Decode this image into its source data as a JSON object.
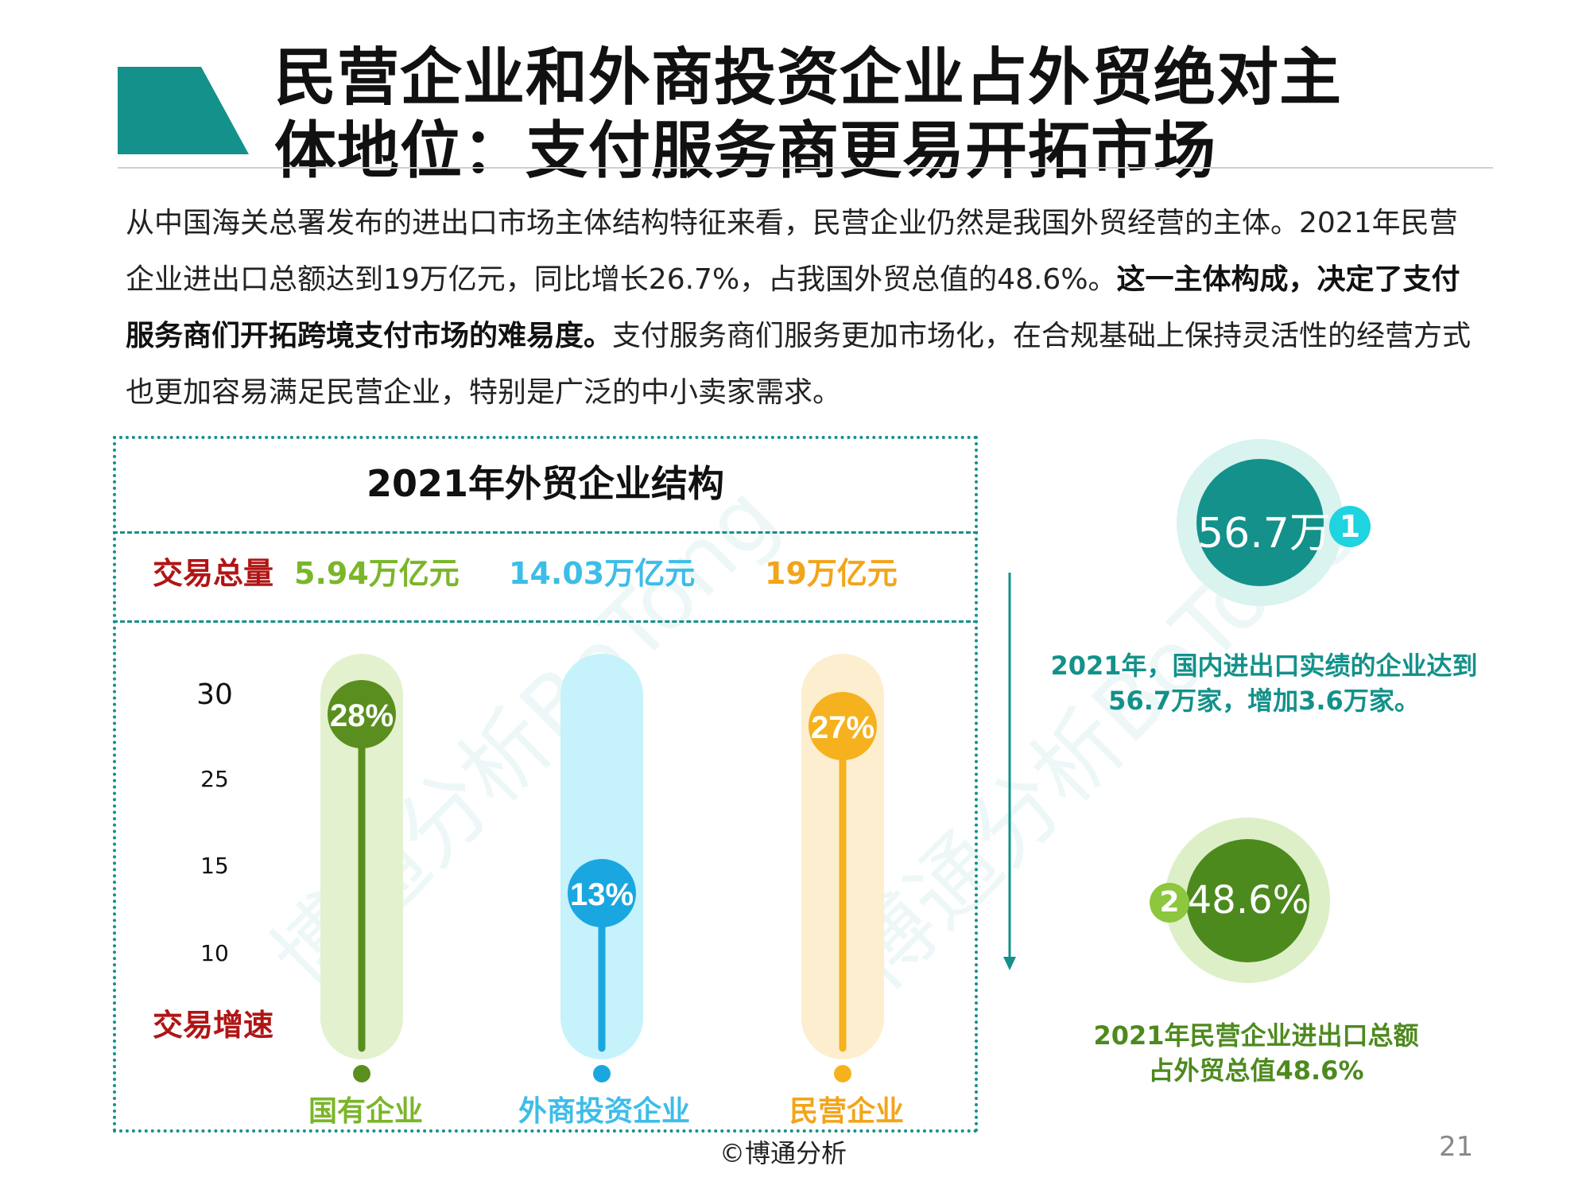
{
  "header": {
    "title_line1": "民营企业和外商投资企业占外贸绝对主",
    "title_line2": "体地位：支付服务商更易开拓市场",
    "accent_color": "#13918a"
  },
  "intro": {
    "part1": "从中国海关总署发布的进出口市场主体结构特征来看，民营企业仍然是我国外贸经营的主体。2021年民营企业进出口总额达到19万亿元，同比增长26.7%，占我国外贸总值的48.6%。",
    "bold": "这一主体构成，决定了支付服务商们开拓跨境支付市场的难易度。",
    "part2": "支付服务商们服务更加市场化，在合规基础上保持灵活性的经营方式也更加容易满足民营企业，特别是广泛的中小卖家需求。"
  },
  "watermark": "博通分析BoTong",
  "chart_data": {
    "type": "bar",
    "title": "2021年外贸企业结构",
    "volume_label": "交易总量",
    "speed_label": "交易增速",
    "categories": [
      "国有企业",
      "外商投资企业",
      "民营企业"
    ],
    "volumes": [
      "5.94万亿元",
      "14.03万亿元",
      "19万亿元"
    ],
    "values": [
      28,
      13,
      27
    ],
    "value_labels": [
      "28%",
      "13%",
      "27%"
    ],
    "yticks": [
      "30",
      "25",
      "15",
      "10"
    ],
    "colors": [
      "#5a8f1f",
      "#1aa7e0",
      "#f5b21e"
    ],
    "track_colors": [
      "#e3f1cf",
      "#c6f2fb",
      "#fdeecf"
    ],
    "label_colors": [
      "#7ab629",
      "#3dbde8",
      "#f2a51a"
    ],
    "ylim": [
      0,
      30
    ]
  },
  "stats": [
    {
      "value": "56.7万",
      "badge": "1",
      "caption_line1": "2021年，国内进出口实绩的企业达到",
      "caption_line2": "56.7万家，增加3.6万家。",
      "color": "#13918a",
      "badge_color": "#1fd3e0"
    },
    {
      "value": "48.6%",
      "badge": "2",
      "caption_line1": "2021年民营企业进出口总额",
      "caption_line2": "占外贸总值48.6%",
      "color": "#4d8a1e",
      "badge_color": "#8dc63f"
    }
  ],
  "footer": {
    "copyright": "©博通分析",
    "page": "21"
  }
}
